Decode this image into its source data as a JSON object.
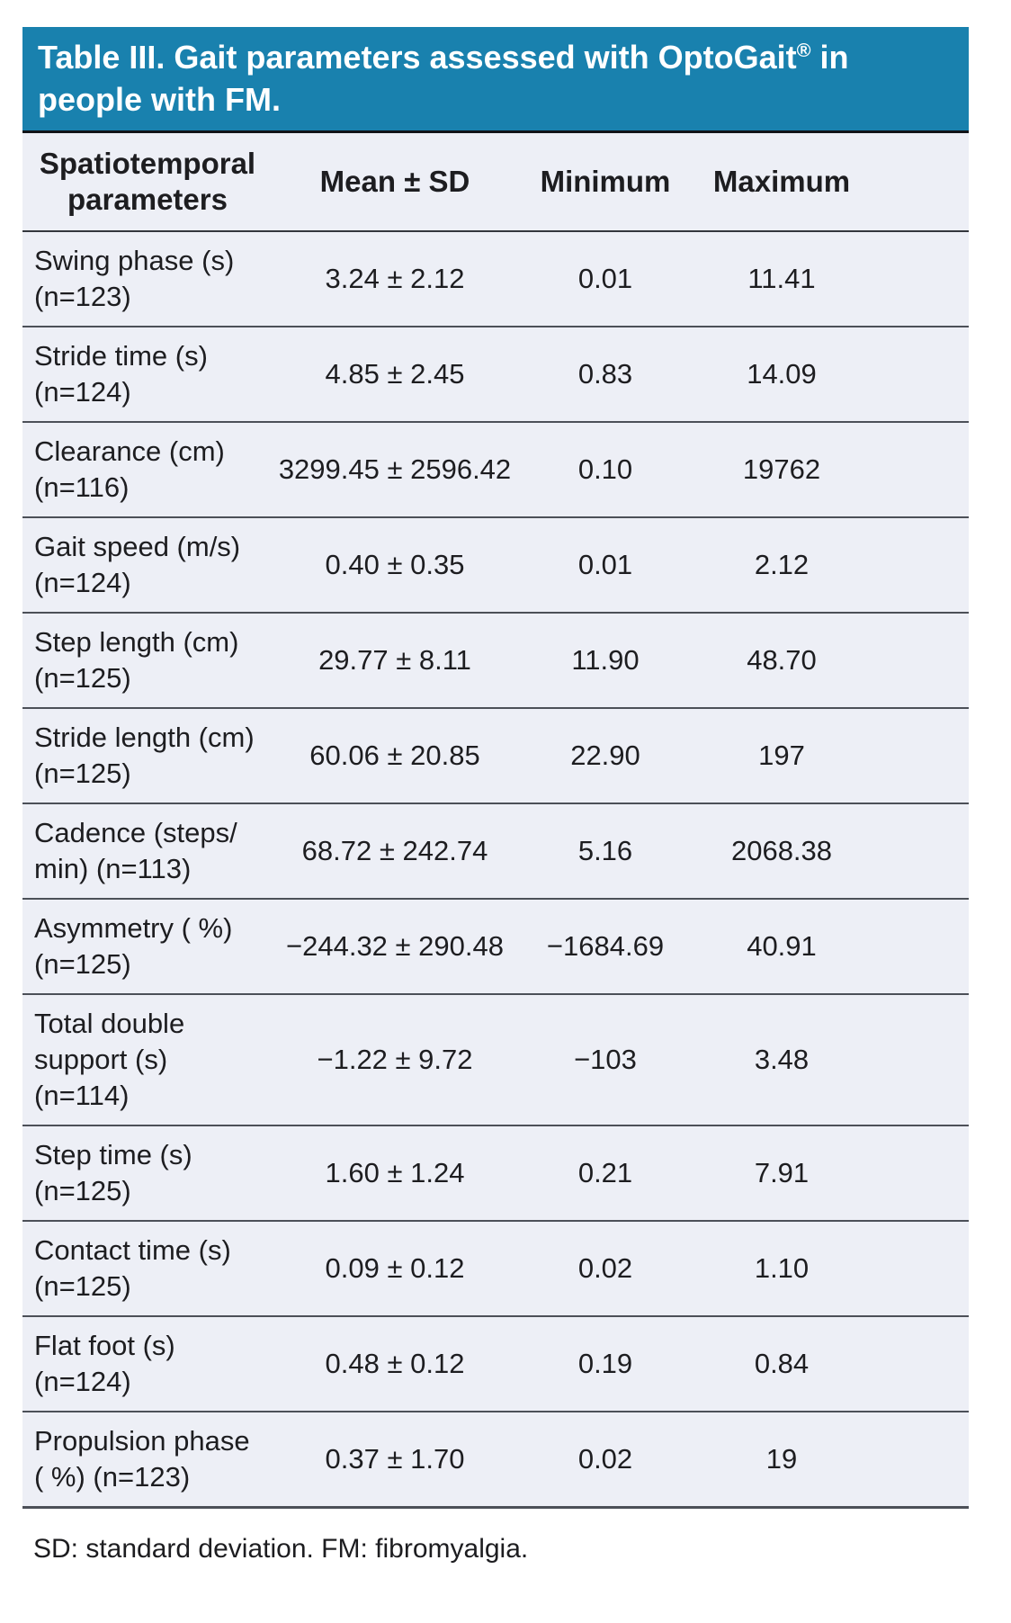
{
  "title": {
    "line1_prefix": "Table III. Gait parameters assessed with OptoGait",
    "registered_mark": "®",
    "line1_suffix": " in",
    "line2": "people with FM."
  },
  "table": {
    "columns": [
      {
        "id": "parameter",
        "label_lines": [
          "Spatiotemporal",
          "parameters"
        ]
      },
      {
        "id": "mean_sd",
        "label_lines": [
          "Mean ± SD"
        ]
      },
      {
        "id": "minimum",
        "label_lines": [
          "Minimum"
        ]
      },
      {
        "id": "maximum",
        "label_lines": [
          "Maximum"
        ]
      }
    ],
    "rows": [
      {
        "parameter_lines": [
          "Swing phase (s)",
          "(n=123)"
        ],
        "mean_sd": "3.24 ± 2.12",
        "minimum": "0.01",
        "maximum": "11.41"
      },
      {
        "parameter_lines": [
          "Stride time (s)",
          "(n=124)"
        ],
        "mean_sd": "4.85 ± 2.45",
        "minimum": "0.83",
        "maximum": "14.09"
      },
      {
        "parameter_lines": [
          "Clearance (cm)",
          "(n=116)"
        ],
        "mean_sd": "3299.45 ± 2596.42",
        "minimum": "0.10",
        "maximum": "19762"
      },
      {
        "parameter_lines": [
          "Gait speed (m/s)",
          "(n=124)"
        ],
        "mean_sd": "0.40 ± 0.35",
        "minimum": "0.01",
        "maximum": "2.12"
      },
      {
        "parameter_lines": [
          "Step length (cm)",
          "(n=125)"
        ],
        "mean_sd": "29.77 ± 8.11",
        "minimum": "11.90",
        "maximum": "48.70"
      },
      {
        "parameter_lines": [
          "Stride length (cm)",
          "(n=125)"
        ],
        "mean_sd": "60.06 ± 20.85",
        "minimum": "22.90",
        "maximum": "197"
      },
      {
        "parameter_lines": [
          "Cadence (steps/",
          "min) (n=113)"
        ],
        "mean_sd": "68.72 ± 242.74",
        "minimum": "5.16",
        "maximum": "2068.38"
      },
      {
        "parameter_lines": [
          "Asymmetry ( %)",
          "(n=125)"
        ],
        "mean_sd": "−244.32 ± 290.48",
        "minimum": "−1684.69",
        "maximum": "40.91"
      },
      {
        "parameter_lines": [
          "Total double",
          "support (s)",
          "(n=114)"
        ],
        "mean_sd": "−1.22 ± 9.72",
        "minimum": "−103",
        "maximum": "3.48"
      },
      {
        "parameter_lines": [
          "Step time (s)",
          "(n=125)"
        ],
        "mean_sd": "1.60 ± 1.24",
        "minimum": "0.21",
        "maximum": "7.91"
      },
      {
        "parameter_lines": [
          "Contact time (s)",
          "(n=125)"
        ],
        "mean_sd": "0.09 ± 0.12",
        "minimum": "0.02",
        "maximum": "1.10"
      },
      {
        "parameter_lines": [
          "Flat foot (s)",
          "(n=124)"
        ],
        "mean_sd": "0.48 ± 0.12",
        "minimum": "0.19",
        "maximum": "0.84"
      },
      {
        "parameter_lines": [
          "Propulsion phase",
          "( %) (n=123)"
        ],
        "mean_sd": "0.37 ± 1.70",
        "minimum": "0.02",
        "maximum": "19"
      }
    ]
  },
  "footnote": "SD: standard deviation. FM: fibromyalgia.",
  "colors": {
    "header_bg": "#1981ae",
    "header_text": "#ffffff",
    "body_bg": "#ffffff",
    "row_bg": "#edeff6",
    "divider": "#4c5058",
    "divider_dark": "#111418",
    "text": "#1d1d20"
  }
}
